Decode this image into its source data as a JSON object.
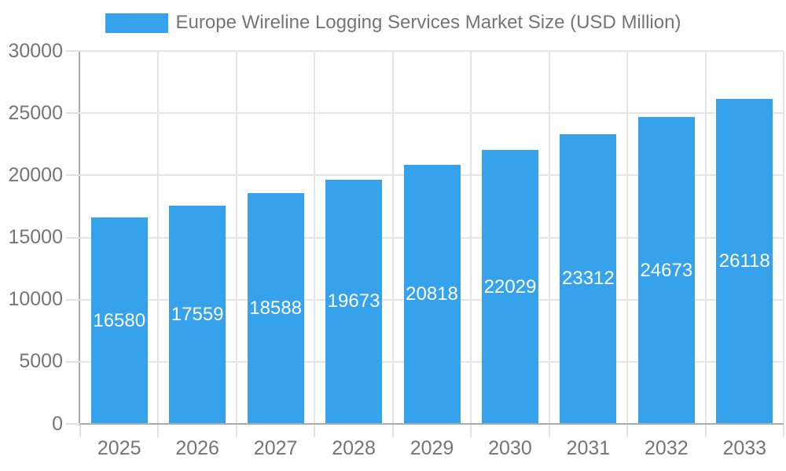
{
  "legend": {
    "label": "Europe Wireline Logging Services Market Size (USD Million)"
  },
  "colors": {
    "bar": "#36A2EB",
    "text": "#757575"
  },
  "chart_data": {
    "type": "bar",
    "title": "Europe Wireline Logging Services Market Size (USD Million)",
    "categories": [
      "2025",
      "2026",
      "2027",
      "2028",
      "2029",
      "2030",
      "2031",
      "2032",
      "2033"
    ],
    "values": [
      16580,
      17559,
      18588,
      19673,
      20818,
      22029,
      23312,
      24673,
      26118
    ],
    "value_labels": [
      "16580",
      "17559",
      "18588",
      "19673",
      "20818",
      "22029",
      "23312",
      "24673",
      "26118"
    ],
    "y_tick_labels": [
      "0",
      "5000",
      "10000",
      "15000",
      "20000",
      "25000",
      "30000"
    ],
    "xlabel": "",
    "ylabel": "",
    "ylim": [
      0,
      30000
    ],
    "y_tick_step": 5000,
    "grid": "on",
    "legend_position": "top",
    "value_label_position": "center-inside",
    "value_label_color": "#ffffff"
  }
}
